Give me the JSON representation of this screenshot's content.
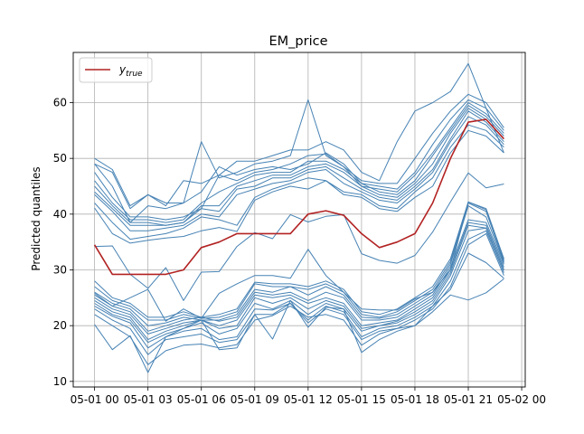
{
  "chart_data": {
    "type": "line",
    "title": "EM_price",
    "xlabel": "",
    "ylabel": "Predicted quantiles",
    "x": [
      "00:00",
      "01:00",
      "02:00",
      "03:00",
      "04:00",
      "05:00",
      "06:00",
      "07:00",
      "08:00",
      "09:00",
      "10:00",
      "11:00",
      "12:00",
      "13:00",
      "14:00",
      "15:00",
      "16:00",
      "17:00",
      "18:00",
      "19:00",
      "20:00",
      "21:00",
      "22:00",
      "23:00"
    ],
    "xticks": [
      "05-01 00",
      "05-01 03",
      "05-01 06",
      "05-01 09",
      "05-01 12",
      "05-01 15",
      "05-01 18",
      "05-01 21",
      "05-02 00"
    ],
    "yticks": [
      10,
      20,
      30,
      40,
      50,
      60
    ],
    "xlim_hours": [
      -1.2,
      24.2
    ],
    "ylim": [
      9,
      69
    ],
    "grid": true,
    "legend": {
      "position": "top-left",
      "entries": [
        "y_true"
      ]
    },
    "colors": {
      "true": "#b22222",
      "quantile": "#4682b4",
      "grid": "#b0b0b0"
    },
    "true_series": {
      "name": "y_true",
      "values": [
        34.5,
        29.2,
        29.2,
        29.2,
        29.2,
        30.0,
        34.0,
        35.0,
        36.5,
        36.5,
        36.5,
        36.5,
        40.0,
        40.6,
        39.8,
        36.5,
        34.0,
        35.0,
        36.5,
        42.0,
        50.0,
        56.5,
        57.0,
        53.5
      ]
    },
    "quantile_series": [
      {
        "values": [
          20.2,
          15.7,
          18.2,
          11.6,
          18.0,
          19.5,
          21.0,
          15.7,
          16.0,
          22.0,
          17.6,
          24.5,
          19.7,
          23.3,
          23.0,
          15.2,
          17.5,
          19.0,
          20.0,
          22.5,
          25.5,
          24.6,
          25.9,
          28.4
        ]
      },
      {
        "values": [
          22.0,
          20.0,
          18.0,
          13.0,
          15.5,
          16.5,
          16.7,
          16.0,
          16.6,
          21.0,
          21.8,
          23.5,
          21.5,
          22.0,
          21.0,
          16.5,
          18.5,
          19.5,
          20.0,
          23.5,
          26.5,
          33.0,
          31.3,
          28.5
        ]
      },
      {
        "values": [
          23.0,
          21.0,
          19.5,
          14.8,
          17.5,
          18.0,
          18.5,
          17.0,
          17.5,
          22.0,
          22.0,
          24.0,
          20.5,
          23.0,
          22.0,
          17.5,
          19.0,
          19.5,
          21.0,
          23.0,
          27.0,
          34.5,
          36.5,
          29.0
        ]
      },
      {
        "values": [
          23.5,
          21.7,
          20.5,
          16.0,
          18.0,
          19.0,
          19.5,
          17.5,
          18.0,
          23.0,
          22.8,
          24.0,
          21.0,
          23.5,
          22.5,
          18.0,
          19.5,
          20.0,
          21.5,
          23.5,
          28.0,
          35.5,
          37.0,
          29.5
        ]
      },
      {
        "values": [
          24.0,
          22.0,
          21.0,
          17.0,
          18.5,
          19.5,
          20.5,
          18.5,
          19.5,
          24.0,
          23.0,
          24.5,
          22.0,
          24.0,
          23.0,
          19.0,
          20.0,
          20.5,
          22.0,
          24.0,
          29.0,
          37.0,
          37.5,
          30.0
        ]
      },
      {
        "values": [
          24.5,
          22.5,
          21.5,
          17.5,
          19.0,
          20.0,
          21.0,
          19.5,
          20.0,
          25.0,
          24.0,
          25.0,
          23.0,
          24.5,
          23.5,
          19.5,
          20.0,
          20.8,
          22.5,
          24.5,
          29.5,
          38.0,
          37.5,
          30.0
        ]
      },
      {
        "values": [
          25.0,
          23.0,
          22.0,
          18.5,
          19.5,
          20.5,
          21.0,
          20.0,
          21.0,
          25.5,
          25.0,
          25.5,
          24.0,
          25.0,
          24.0,
          20.0,
          20.5,
          21.0,
          23.0,
          25.0,
          30.0,
          38.5,
          38.0,
          30.5
        ]
      },
      {
        "values": [
          25.5,
          23.5,
          22.5,
          19.0,
          20.0,
          21.0,
          21.5,
          20.8,
          21.5,
          26.0,
          25.5,
          26.0,
          24.5,
          26.0,
          25.0,
          21.0,
          21.0,
          21.5,
          23.5,
          25.5,
          30.5,
          39.0,
          38.5,
          31.0
        ]
      },
      {
        "values": [
          26.0,
          24.0,
          23.0,
          20.0,
          20.5,
          21.5,
          21.0,
          21.0,
          22.0,
          26.5,
          26.0,
          27.0,
          25.5,
          27.0,
          25.5,
          21.5,
          21.3,
          22.0,
          24.0,
          26.0,
          31.0,
          41.5,
          39.5,
          31.3
        ]
      },
      {
        "values": [
          27.0,
          24.5,
          23.5,
          21.0,
          21.0,
          22.0,
          21.3,
          21.5,
          22.5,
          27.5,
          27.0,
          27.0,
          26.5,
          27.5,
          26.0,
          22.0,
          21.5,
          22.5,
          24.5,
          26.5,
          31.5,
          42.0,
          40.5,
          31.5
        ]
      },
      {
        "values": [
          28.0,
          25.0,
          24.0,
          21.5,
          21.5,
          22.5,
          21.5,
          22.0,
          23.0,
          27.8,
          27.5,
          27.5,
          27.0,
          28.0,
          26.5,
          22.5,
          22.0,
          23.0,
          25.0,
          27.0,
          32.0,
          42.2,
          41.0,
          32.0
        ]
      },
      {
        "values": [
          25.8,
          23.5,
          25.0,
          26.5,
          20.8,
          23.0,
          21.3,
          25.8,
          27.5,
          29.0,
          29.0,
          28.5,
          33.7,
          29.0,
          26.0,
          23.0,
          22.8,
          22.8,
          24.8,
          26.0,
          30.0,
          42.2,
          40.8,
          31.8
        ]
      },
      {
        "values": [
          34.2,
          34.3,
          29.2,
          26.7,
          30.4,
          24.5,
          29.6,
          29.7,
          34.2,
          36.7,
          35.6,
          39.9,
          38.6,
          39.6,
          39.9,
          32.9,
          31.7,
          31.2,
          32.6,
          36.8,
          42.2,
          47.4,
          44.7,
          45.4
        ]
      },
      {
        "values": [
          41.1,
          36.5,
          34.8,
          35.3,
          35.7,
          36.0,
          37.0,
          37.6,
          36.9,
          42.5,
          44.0,
          45.0,
          44.5,
          46.0,
          43.5,
          43.0,
          41.0,
          40.5,
          43.0,
          45.0,
          51.0,
          55.0,
          54.0,
          51.0
        ]
      },
      {
        "values": [
          42.0,
          38.5,
          35.5,
          36.0,
          36.5,
          37.5,
          39.5,
          39.0,
          38.0,
          43.0,
          44.5,
          45.5,
          46.5,
          46.0,
          44.0,
          43.5,
          41.5,
          41.0,
          44.0,
          46.5,
          52.0,
          56.0,
          55.0,
          52.0
        ]
      },
      {
        "values": [
          43.5,
          40.5,
          37.0,
          37.0,
          37.5,
          38.0,
          40.0,
          39.5,
          43.5,
          44.5,
          45.5,
          46.0,
          47.5,
          48.0,
          45.5,
          44.0,
          42.5,
          42.0,
          44.5,
          47.5,
          53.0,
          57.5,
          56.0,
          52.5
        ]
      },
      {
        "values": [
          44.0,
          41.0,
          38.0,
          38.0,
          38.0,
          38.5,
          41.0,
          40.5,
          44.5,
          45.0,
          46.5,
          46.5,
          48.0,
          48.5,
          46.5,
          44.5,
          43.0,
          42.5,
          45.0,
          48.0,
          53.5,
          58.5,
          56.5,
          53.0
        ]
      },
      {
        "values": [
          45.0,
          41.5,
          38.5,
          38.5,
          38.0,
          38.5,
          41.5,
          41.5,
          45.0,
          46.0,
          47.0,
          47.0,
          48.5,
          49.0,
          47.5,
          45.0,
          43.5,
          43.0,
          45.5,
          49.0,
          54.5,
          59.0,
          57.0,
          53.5
        ]
      },
      {
        "values": [
          46.0,
          42.0,
          39.0,
          39.0,
          38.5,
          39.0,
          42.0,
          44.0,
          45.5,
          47.0,
          47.5,
          47.5,
          49.5,
          49.5,
          48.0,
          45.5,
          44.0,
          43.5,
          46.0,
          50.5,
          55.0,
          59.5,
          57.5,
          54.0
        ]
      },
      {
        "values": [
          47.5,
          43.0,
          39.5,
          39.5,
          39.0,
          39.5,
          41.0,
          47.0,
          46.0,
          47.5,
          48.0,
          49.0,
          50.5,
          50.8,
          48.5,
          45.0,
          44.5,
          44.0,
          47.0,
          51.0,
          55.5,
          60.0,
          58.0,
          54.5
        ]
      },
      {
        "values": [
          49.0,
          45.0,
          38.5,
          41.5,
          41.0,
          42.0,
          44.0,
          48.5,
          47.0,
          48.0,
          48.5,
          48.0,
          49.0,
          51.0,
          49.0,
          45.5,
          45.0,
          44.5,
          47.5,
          52.5,
          57.0,
          60.5,
          59.0,
          55.0
        ]
      },
      {
        "values": [
          49.0,
          47.5,
          41.0,
          43.5,
          42.0,
          42.0,
          53.0,
          46.5,
          47.5,
          49.0,
          49.5,
          50.5,
          60.5,
          50.5,
          48.5,
          46.0,
          45.5,
          45.5,
          50.0,
          54.5,
          58.5,
          61.5,
          60.0,
          55.5
        ]
      },
      {
        "values": [
          50.0,
          48.0,
          41.5,
          43.5,
          41.5,
          46.0,
          45.5,
          47.0,
          49.5,
          49.5,
          50.5,
          51.5,
          51.5,
          53.0,
          51.5,
          47.5,
          46.0,
          53.0,
          58.5,
          60.0,
          62.0,
          67.0,
          59.0,
          51.0
        ]
      }
    ]
  }
}
